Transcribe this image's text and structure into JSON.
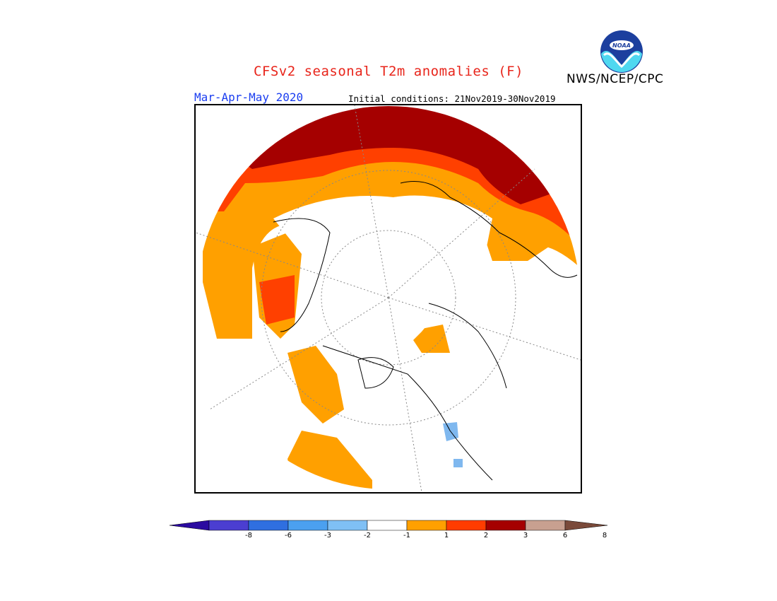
{
  "header": {
    "title": "CFSv2 seasonal T2m anomalies (F)",
    "agency": "NWS/NCEP/CPC",
    "season": "Mar-Apr-May 2020",
    "initial_conditions": "Initial conditions: 21Nov2019-30Nov2019",
    "logo_text": "NOAA"
  },
  "legend": {
    "colors": [
      "#2b0ba0",
      "#4b3ed1",
      "#2f6fe0",
      "#4ba0f0",
      "#7fc0f5",
      "#ffffff",
      "#ffa000",
      "#ff3c00",
      "#a50000",
      "#c8a090",
      "#7a4a3a"
    ],
    "ticks": [
      "-8",
      "-6",
      "-3",
      "-2",
      "-1",
      "1",
      "2",
      "3",
      "6",
      "8"
    ]
  },
  "map": {
    "anomaly_colors": {
      "warm1": "#ffa000",
      "warm2": "#ff4000",
      "warm3": "#a50000",
      "cool1": "#7fb8ef"
    }
  }
}
